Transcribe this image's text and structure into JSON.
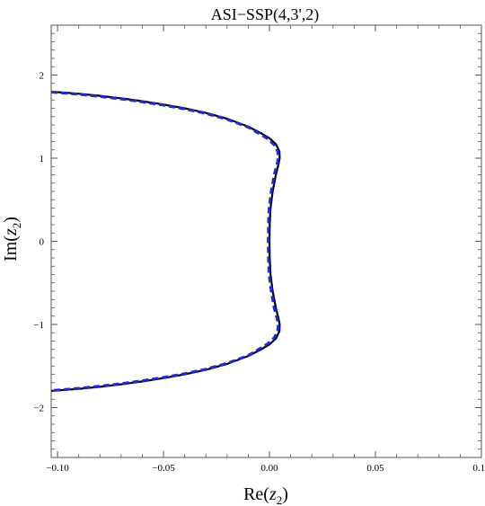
{
  "chart_data": {
    "type": "line",
    "title": "ASI−SSP(4,3',2)",
    "xlabel_base": "Re(",
    "xlabel_var": "z",
    "xlabel_sub": "2",
    "xlabel_end": ")",
    "ylabel_base": "Im(",
    "ylabel_var": "z",
    "ylabel_sub": "2",
    "ylabel_end": ")",
    "xlim": [
      -0.103,
      0.1
    ],
    "ylim": [
      -2.6,
      2.6
    ],
    "x_ticks": [
      -0.1,
      -0.05,
      0.0,
      0.05,
      0.1
    ],
    "x_tick_labels": [
      "−0.10",
      "−0.05",
      "0.00",
      "0.05",
      "0.10"
    ],
    "y_ticks": [
      -2,
      -1,
      0,
      1,
      2
    ],
    "y_tick_labels": [
      "−2",
      "−1",
      "0",
      "1",
      "2"
    ],
    "grid": false,
    "series": [
      {
        "style": "solid",
        "color": "#000000",
        "points": [
          [
            -0.103,
            1.8
          ],
          [
            -0.09,
            1.775
          ],
          [
            -0.08,
            1.75
          ],
          [
            -0.07,
            1.72
          ],
          [
            -0.06,
            1.685
          ],
          [
            -0.05,
            1.645
          ],
          [
            -0.04,
            1.6
          ],
          [
            -0.03,
            1.545
          ],
          [
            -0.02,
            1.475
          ],
          [
            -0.01,
            1.38
          ],
          [
            -0.004,
            1.3
          ],
          [
            0.0,
            1.24
          ],
          [
            0.003,
            1.17
          ],
          [
            0.0047,
            1.08
          ],
          [
            0.0048,
            1.0
          ],
          [
            0.0042,
            0.92
          ],
          [
            0.003,
            0.8
          ],
          [
            0.0015,
            0.6
          ],
          [
            0.0005,
            0.4
          ],
          [
            0.0001,
            0.2
          ],
          [
            0.0,
            0.0
          ],
          [
            0.0001,
            -0.2
          ],
          [
            0.0005,
            -0.4
          ],
          [
            0.0015,
            -0.6
          ],
          [
            0.003,
            -0.8
          ],
          [
            0.0042,
            -0.92
          ],
          [
            0.0048,
            -1.0
          ],
          [
            0.0047,
            -1.08
          ],
          [
            0.003,
            -1.17
          ],
          [
            0.0,
            -1.24
          ],
          [
            -0.004,
            -1.3
          ],
          [
            -0.01,
            -1.38
          ],
          [
            -0.02,
            -1.475
          ],
          [
            -0.03,
            -1.545
          ],
          [
            -0.04,
            -1.6
          ],
          [
            -0.05,
            -1.645
          ],
          [
            -0.06,
            -1.685
          ],
          [
            -0.07,
            -1.72
          ],
          [
            -0.08,
            -1.75
          ],
          [
            -0.09,
            -1.775
          ],
          [
            -0.103,
            -1.8
          ]
        ]
      },
      {
        "style": "dashed",
        "color": "#1f2bd9",
        "points": [
          [
            -0.103,
            1.795
          ],
          [
            -0.09,
            1.768
          ],
          [
            -0.08,
            1.742
          ],
          [
            -0.07,
            1.712
          ],
          [
            -0.06,
            1.677
          ],
          [
            -0.05,
            1.637
          ],
          [
            -0.04,
            1.592
          ],
          [
            -0.03,
            1.537
          ],
          [
            -0.02,
            1.467
          ],
          [
            -0.01,
            1.372
          ],
          [
            -0.0045,
            1.29
          ],
          [
            -0.0007,
            1.23
          ],
          [
            0.0022,
            1.16
          ],
          [
            0.0039,
            1.08
          ],
          [
            0.0041,
            1.0
          ],
          [
            0.0035,
            0.92
          ],
          [
            0.0022,
            0.8
          ],
          [
            0.0008,
            0.6
          ],
          [
            -0.0002,
            0.4
          ],
          [
            -0.0005,
            0.2
          ],
          [
            -0.0006,
            0.0
          ],
          [
            -0.0005,
            -0.2
          ],
          [
            -0.0002,
            -0.4
          ],
          [
            0.0008,
            -0.6
          ],
          [
            0.0022,
            -0.8
          ],
          [
            0.0035,
            -0.92
          ],
          [
            0.0041,
            -1.0
          ],
          [
            0.0039,
            -1.08
          ],
          [
            0.0022,
            -1.16
          ],
          [
            -0.0007,
            -1.23
          ],
          [
            -0.0045,
            -1.29
          ],
          [
            -0.01,
            -1.372
          ],
          [
            -0.02,
            -1.467
          ],
          [
            -0.03,
            -1.537
          ],
          [
            -0.04,
            -1.592
          ],
          [
            -0.05,
            -1.637
          ],
          [
            -0.06,
            -1.677
          ],
          [
            -0.07,
            -1.712
          ],
          [
            -0.08,
            -1.742
          ],
          [
            -0.09,
            -1.768
          ],
          [
            -0.103,
            -1.795
          ]
        ]
      }
    ]
  }
}
